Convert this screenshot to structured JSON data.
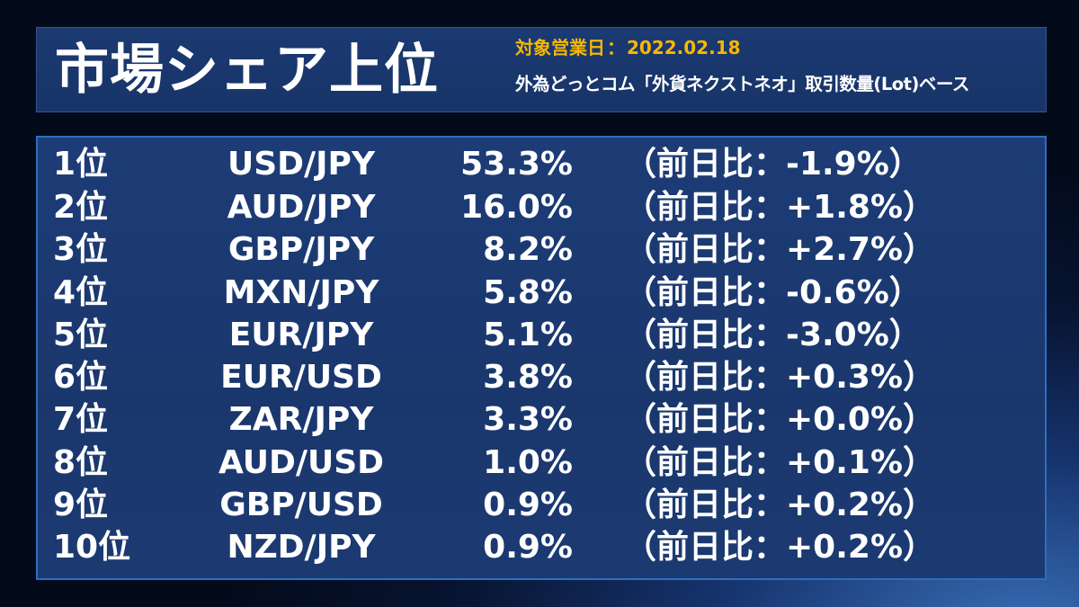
{
  "header": {
    "title": "市場シェア上位",
    "date_label": "対象営業日",
    "date_separator": "：",
    "date_value": "2022.02.18",
    "subtitle": "外為どっとコム「外貨ネクストネオ」取引数量(Lot)ベース"
  },
  "rows": [
    {
      "rank": "1位",
      "pair": "USD/JPY",
      "share": "53.3%",
      "change": "（前日比：-1.9%）"
    },
    {
      "rank": "2位",
      "pair": "AUD/JPY",
      "share": "16.0%",
      "change": "（前日比：+1.8%）"
    },
    {
      "rank": "3位",
      "pair": "GBP/JPY",
      "share": "8.2%",
      "change": "（前日比：+2.7%）"
    },
    {
      "rank": "4位",
      "pair": "MXN/JPY",
      "share": "5.8%",
      "change": "（前日比：-0.6%）"
    },
    {
      "rank": "5位",
      "pair": "EUR/JPY",
      "share": "5.1%",
      "change": "（前日比：-3.0%）"
    },
    {
      "rank": "6位",
      "pair": "EUR/USD",
      "share": "3.8%",
      "change": "（前日比：+0.3%）"
    },
    {
      "rank": "7位",
      "pair": "ZAR/JPY",
      "share": "3.3%",
      "change": "（前日比：+0.0%）"
    },
    {
      "rank": "8位",
      "pair": "AUD/USD",
      "share": "1.0%",
      "change": "（前日比：+0.1%）"
    },
    {
      "rank": "9位",
      "pair": "GBP/USD",
      "share": "0.9%",
      "change": "（前日比：+0.2%）"
    },
    {
      "rank": "10位",
      "pair": "NZD/JPY",
      "share": "0.9%",
      "change": "（前日比：+0.2%）"
    }
  ],
  "colors": {
    "date_accent": "#f6b800",
    "panel_border": "#2f6ec0",
    "panel_fill": "#1c3a72",
    "text": "#ffffff"
  }
}
